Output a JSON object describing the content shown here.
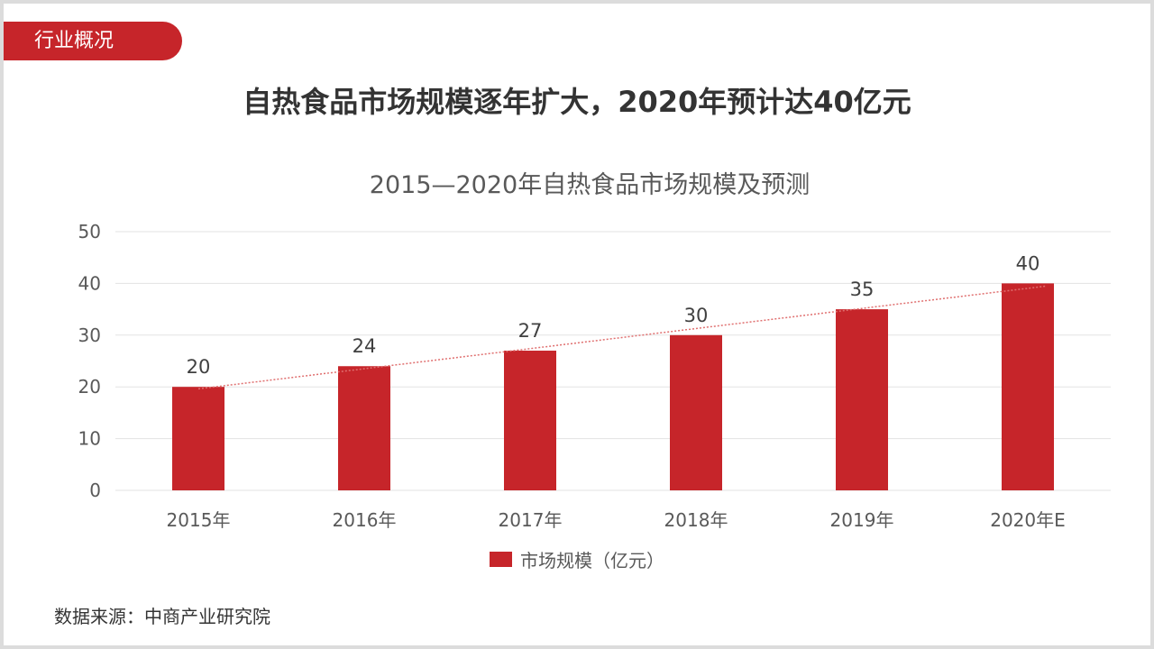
{
  "section_tag": "行业概况",
  "headline": "自热食品市场规模逐年扩大，2020年预计达40亿元",
  "source": "数据来源：中商产业研究院",
  "colors": {
    "accent": "#c6252a",
    "bar": "#c6252a",
    "trendline": "#e07070"
  },
  "chart_data": {
    "type": "bar",
    "title": "2015—2020年自热食品市场规模及预测",
    "categories": [
      "2015年",
      "2016年",
      "2017年",
      "2018年",
      "2019年",
      "2020年E"
    ],
    "series": [
      {
        "name": "市场规模（亿元）",
        "values": [
          20,
          24,
          27,
          30,
          35,
          40
        ]
      }
    ],
    "data_labels": [
      "20",
      "24",
      "27",
      "30",
      "35",
      "40"
    ],
    "trendline": "linear",
    "ylim": [
      0,
      50
    ],
    "yticks": [
      "0",
      "10",
      "20",
      "30",
      "40",
      "50"
    ],
    "grid": true,
    "legend": "bottom"
  }
}
